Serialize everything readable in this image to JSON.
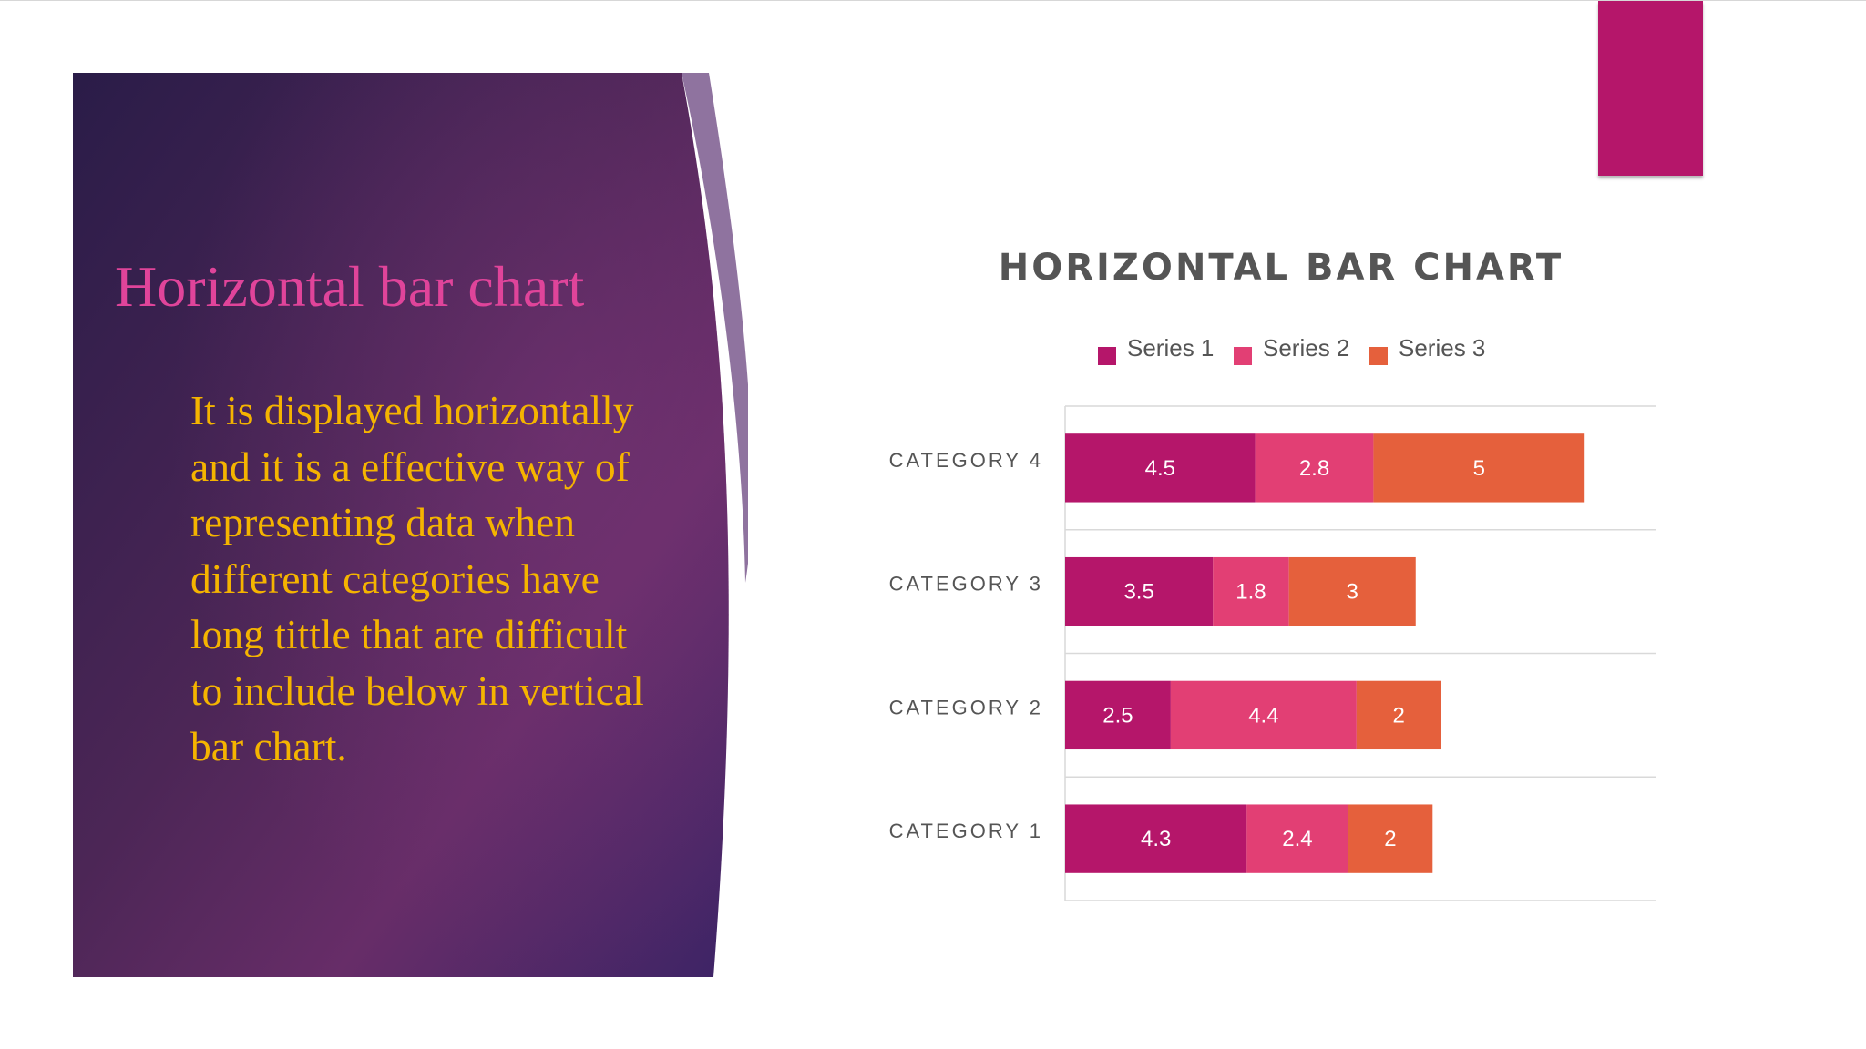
{
  "slide": {
    "title": "Horizontal bar chart",
    "body": "It is displayed horizontally and it is a effective way of representing data when different categories have long tittle that are difficult to include below in vertical bar chart.",
    "colors": {
      "panel_gradient_start": "#2d1f4c",
      "panel_gradient_end": "#6a2f6b",
      "title": "#e0449a",
      "body_text": "#f5b400",
      "accent_tab": "#b5166a"
    }
  },
  "chart_data": {
    "type": "bar",
    "orientation": "horizontal",
    "stacked": true,
    "title": "HORIZONTAL BAR CHART",
    "categories": [
      "CATEGORY 1",
      "CATEGORY 2",
      "CATEGORY 3",
      "CATEGORY 4"
    ],
    "series": [
      {
        "name": "Series 1",
        "values": [
          4.3,
          2.5,
          3.5,
          4.5
        ],
        "color": "#b5166a"
      },
      {
        "name": "Series 2",
        "values": [
          2.4,
          4.4,
          1.8,
          2.8
        ],
        "color": "#e23f74"
      },
      {
        "name": "Series 3",
        "values": [
          2,
          2,
          3,
          5
        ],
        "color": "#e5603c"
      }
    ],
    "xlim": [
      0,
      14
    ],
    "legend": "top",
    "data_labels": true,
    "gridlines": true,
    "axis_tick_labels_shown": false
  }
}
